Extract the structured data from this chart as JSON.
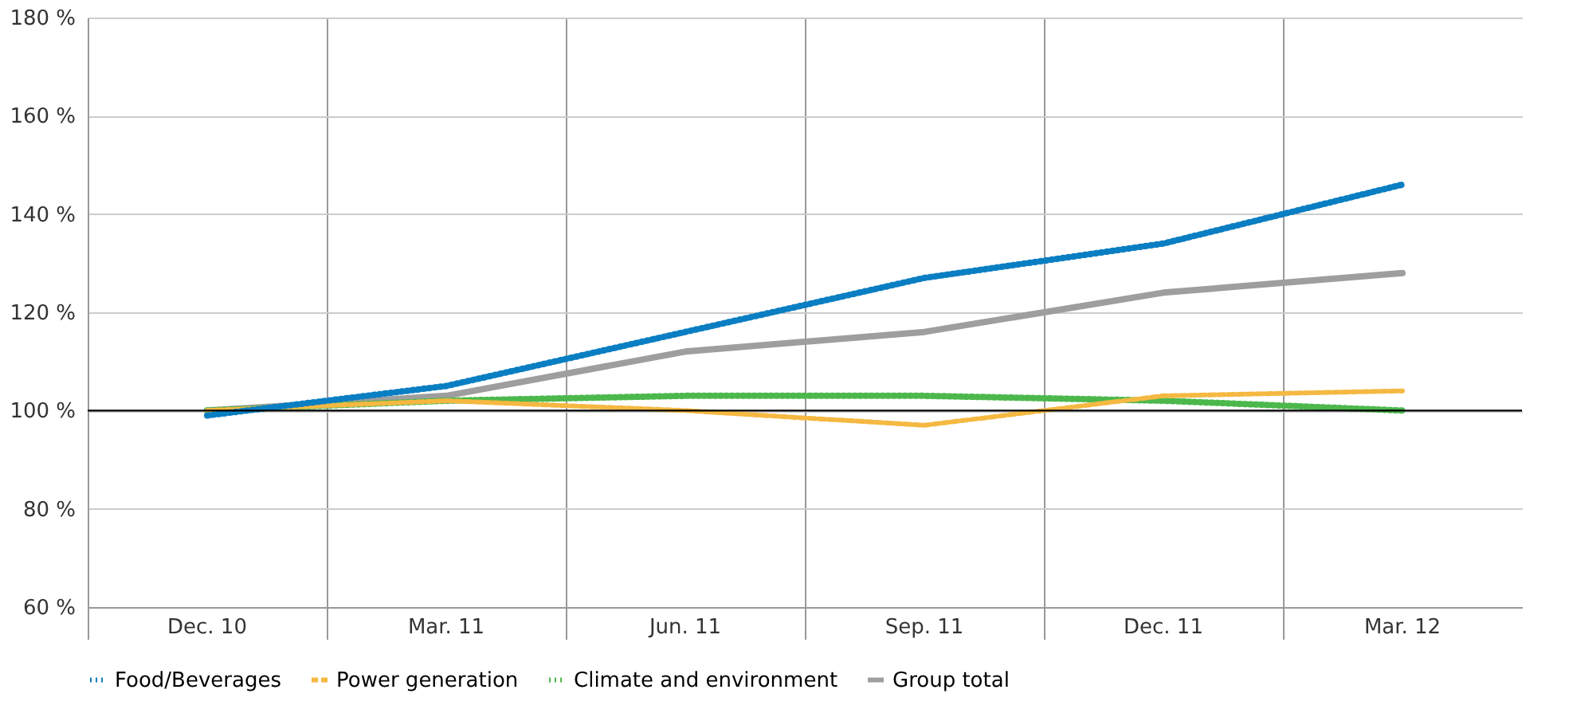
{
  "chart_data": {
    "type": "line",
    "categories": [
      "Dec. 10",
      "Mar. 11",
      "Jun. 11",
      "Sep. 11",
      "Dec. 11",
      "Mar. 12"
    ],
    "series": [
      {
        "name": "Food/Beverages",
        "color": "#0a7ec2",
        "line_style": "dotted",
        "values": [
          99,
          105,
          116,
          127,
          134,
          146
        ]
      },
      {
        "name": "Power generation",
        "color": "#f5b841",
        "line_style": "dashed",
        "values": [
          100,
          102,
          100,
          97,
          103,
          104
        ]
      },
      {
        "name": "Climate and environment",
        "color": "#4cb84c",
        "line_style": "dotted",
        "values": [
          100,
          102,
          103,
          103,
          102,
          100
        ]
      },
      {
        "name": "Group total",
        "color": "#9e9e9e",
        "line_style": "solid",
        "values": [
          100,
          103,
          112,
          116,
          124,
          128
        ]
      }
    ],
    "ylim": [
      60,
      180
    ],
    "yticks": [
      {
        "value": 60,
        "label": "60 %"
      },
      {
        "value": 80,
        "label": "80 %"
      },
      {
        "value": 100,
        "label": "100 %"
      },
      {
        "value": 120,
        "label": "120 %"
      },
      {
        "value": 140,
        "label": "140 %"
      },
      {
        "value": 160,
        "label": "160 %"
      },
      {
        "value": 180,
        "label": "180 %"
      }
    ],
    "ref_lines": [
      {
        "axis": "y",
        "value": 100,
        "label": null,
        "color": "#000000"
      }
    ],
    "grid": true,
    "legend": "bottom left",
    "marker": "none"
  }
}
